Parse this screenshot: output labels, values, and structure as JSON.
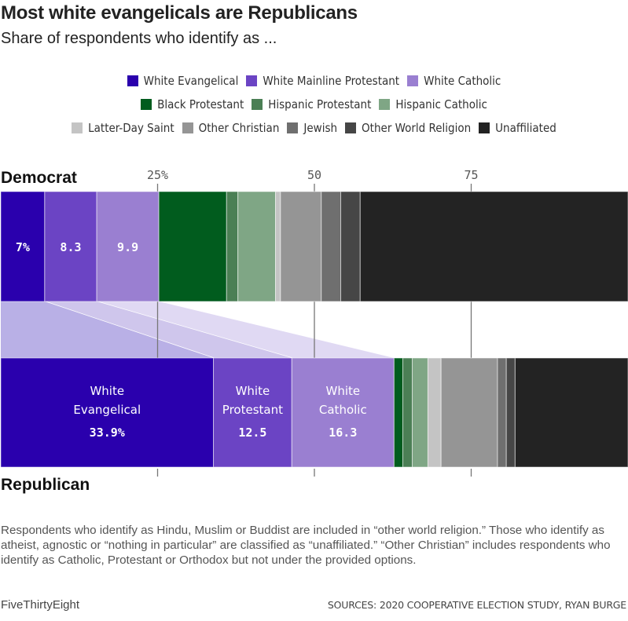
{
  "header": {
    "title": "Most white evangelicals are Republicans",
    "subtitle": "Share of respondents who identify as ..."
  },
  "legend": {
    "rows": [
      [
        {
          "label": "White Evangelical",
          "color": "#2a00ad"
        },
        {
          "label": "White Mainline Protestant",
          "color": "#6b44c4"
        },
        {
          "label": "White Catholic",
          "color": "#9a7fd1"
        }
      ],
      [
        {
          "label": "Black Protestant",
          "color": "#015c1e"
        },
        {
          "label": "Hispanic Protestant",
          "color": "#4b7f55"
        },
        {
          "label": "Hispanic Catholic",
          "color": "#7fa685"
        }
      ],
      [
        {
          "label": "Latter-Day Saint",
          "color": "#c4c4c4"
        },
        {
          "label": "Other Christian",
          "color": "#959595"
        },
        {
          "label": "Jewish",
          "color": "#6f6f6f"
        },
        {
          "label": "Other World Religion",
          "color": "#464646"
        },
        {
          "label": "Unaffiliated",
          "color": "#232323"
        }
      ]
    ]
  },
  "chart_data": {
    "type": "bar",
    "orientation": "horizontal-stacked",
    "title": "Most white evangelicals are Republicans",
    "subtitle": "Share of respondents who identify as ...",
    "xlim": [
      0,
      100
    ],
    "ticks": [
      {
        "value": 25,
        "label": "25%"
      },
      {
        "value": 50,
        "label": "50"
      },
      {
        "value": 75,
        "label": "75"
      }
    ],
    "categories": [
      "Democrat",
      "Republican"
    ],
    "series": [
      {
        "name": "White Evangelical",
        "color": "#2a00ad",
        "values": [
          7.0,
          33.9
        ],
        "labels": [
          "7%",
          "33.9%"
        ],
        "rep_name": [
          "White",
          "Evangelical"
        ]
      },
      {
        "name": "White Mainline Protestant",
        "color": "#6b44c4",
        "values": [
          8.3,
          12.5
        ],
        "labels": [
          "8.3",
          "12.5"
        ],
        "rep_name": [
          "White",
          "Protestant"
        ]
      },
      {
        "name": "White Catholic",
        "color": "#9a7fd1",
        "values": [
          9.9,
          16.3
        ],
        "labels": [
          "9.9",
          "16.3"
        ],
        "rep_name": [
          "White",
          "Catholic"
        ]
      },
      {
        "name": "Black Protestant",
        "color": "#015c1e",
        "values": [
          10.8,
          1.4
        ]
      },
      {
        "name": "Hispanic Protestant",
        "color": "#4b7f55",
        "values": [
          1.8,
          1.5
        ]
      },
      {
        "name": "Hispanic Catholic",
        "color": "#7fa685",
        "values": [
          6.0,
          2.5
        ]
      },
      {
        "name": "Latter-Day Saint",
        "color": "#c4c4c4",
        "values": [
          0.8,
          2.1
        ]
      },
      {
        "name": "Other Christian",
        "color": "#959595",
        "values": [
          6.5,
          9.0
        ]
      },
      {
        "name": "Jewish",
        "color": "#6f6f6f",
        "values": [
          3.1,
          1.4
        ]
      },
      {
        "name": "Other World Religion",
        "color": "#464646",
        "values": [
          3.1,
          1.4
        ]
      },
      {
        "name": "Unaffiliated",
        "color": "#232323",
        "values": [
          42.7,
          18.0
        ]
      }
    ],
    "connector_colors": [
      "#b9b0e6",
      "#cfc6ec",
      "#e0d9f3"
    ],
    "legend_position": "top-center",
    "grid": false
  },
  "groups": {
    "democrat": "Democrat",
    "republican": "Republican"
  },
  "footer": {
    "note": "Respondents who identify as Hindu, Muslim or Buddist are included in “other world religion.” Those who identify as atheist, agnostic or “nothing in particular” are classified as “unaffiliated.” “Other Christian” includes respondents who identify as Catholic, Protestant or Orthodox but not under the provided options.",
    "brand": "FiveThirtyEight",
    "source": "SOURCES: 2020 COOPERATIVE ELECTION STUDY, RYAN BURGE"
  }
}
